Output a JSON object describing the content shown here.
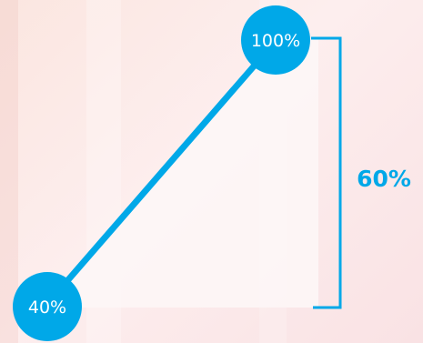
{
  "diagram": {
    "start_label": "40%",
    "end_label": "100%",
    "difference_label": "60%"
  },
  "colors": {
    "accent": "#00a8e8",
    "background": "#fbe8e6",
    "triangle_fill": "#fdf6f6"
  }
}
